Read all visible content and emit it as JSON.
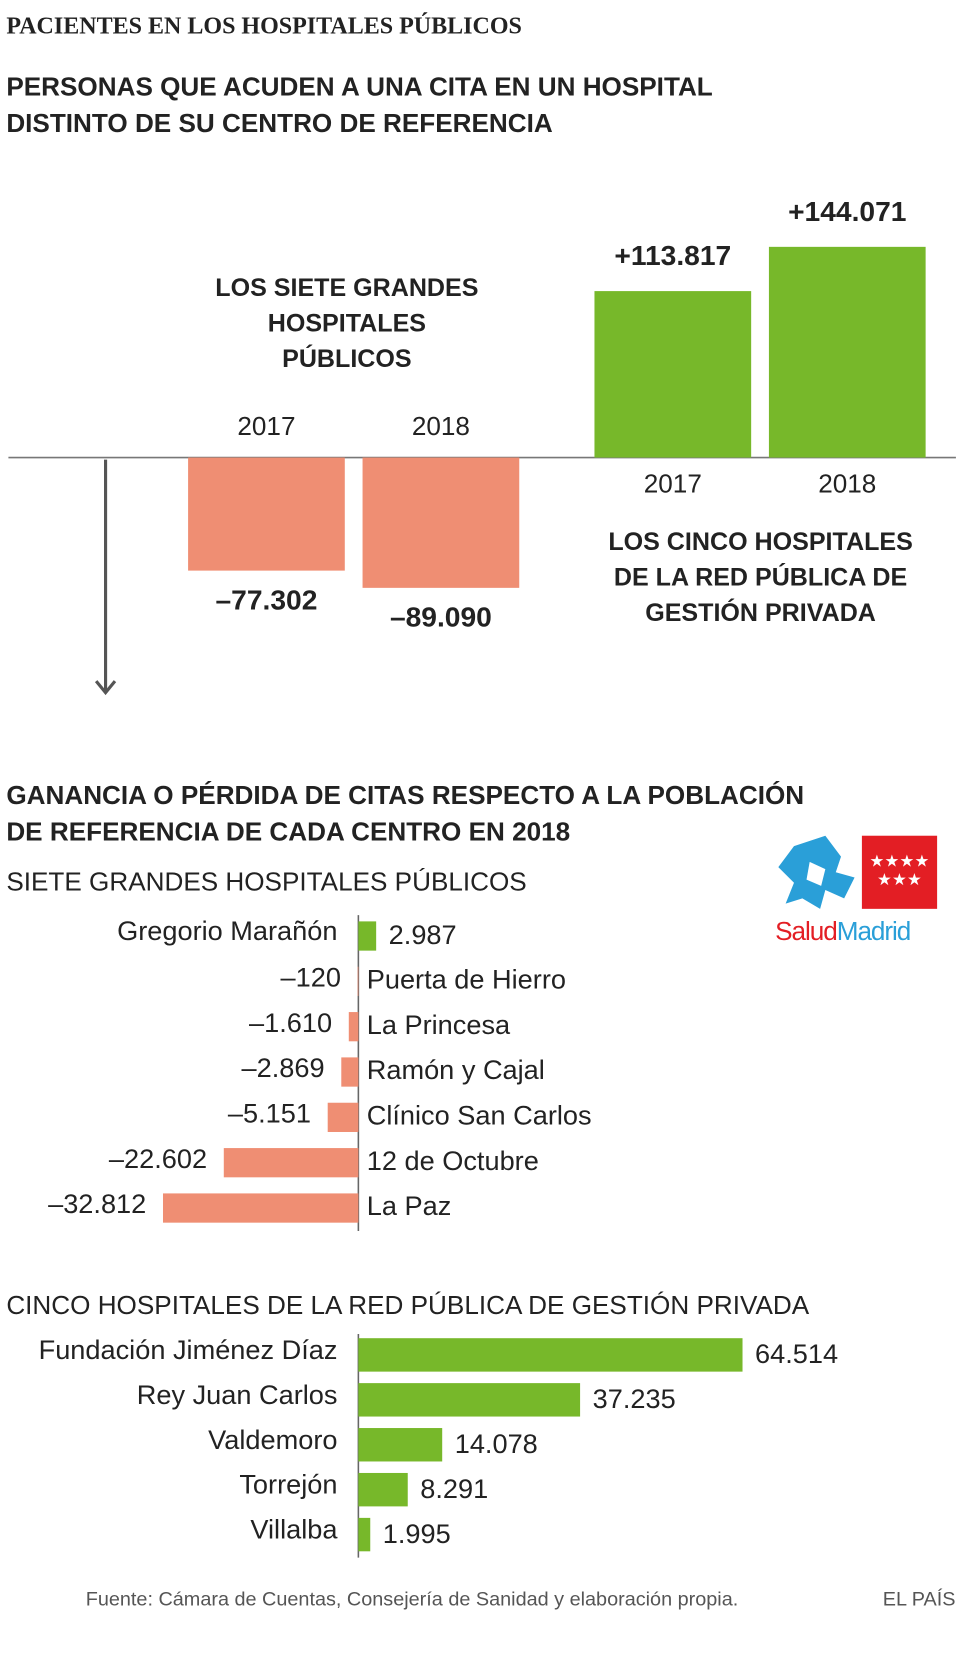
{
  "title": "PACIENTES EN LOS HOSPITALES PÚBLICOS",
  "chart_data": [
    {
      "type": "bar",
      "title": [
        "PERSONAS QUE ACUDEN A UNA CITA EN UN HOSPITAL",
        "DISTINTO DE SU CENTRO DE REFERENCIA"
      ],
      "categories": [
        "2017",
        "2018"
      ],
      "series": [
        {
          "name": [
            "LOS SIETE GRANDES",
            "HOSPITALES",
            "PÚBLICOS"
          ],
          "color": "#ef8e73",
          "values": [
            -77302,
            -89090
          ],
          "value_labels": [
            "–77.302",
            "–89.090"
          ]
        },
        {
          "name": [
            "LOS CINCO HOSPITALES",
            "DE LA RED PÚBLICA DE",
            "GESTIÓN PRIVADA"
          ],
          "color": "#77b82a",
          "values": [
            113817,
            144071
          ],
          "value_labels": [
            "+113.817",
            "+144.071"
          ]
        }
      ]
    },
    {
      "type": "barh",
      "title": [
        "GANANCIA O PÉRDIDA DE CITAS RESPECTO A LA POBLACIÓN",
        "DE REFERENCIA DE CADA CENTRO EN 2018"
      ],
      "subtitle": "SIETE GRANDES HOSPITALES PÚBLICOS",
      "categories": [
        "Gregorio Marañón",
        "Puerta de Hierro",
        "La Princesa",
        "Ramón y Cajal",
        "Clínico San Carlos",
        "12 de Octubre",
        "La Paz"
      ],
      "values": [
        2987,
        -120,
        -1610,
        -2869,
        -5151,
        -22602,
        -32812
      ],
      "value_labels": [
        "2.987",
        "–120",
        "–1.610",
        "–2.869",
        "–5.151",
        "–22.602",
        "–32.812"
      ],
      "colors": {
        "positive": "#77b82a",
        "negative": "#ef8e73"
      }
    },
    {
      "type": "barh",
      "subtitle": "CINCO HOSPITALES DE LA RED PÚBLICA DE GESTIÓN PRIVADA",
      "categories": [
        "Fundación Jiménez Díaz",
        "Rey Juan Carlos",
        "Valdemoro",
        "Torrejón",
        "Villalba"
      ],
      "values": [
        64514,
        37235,
        14078,
        8291,
        1995
      ],
      "value_labels": [
        "64.514",
        "37.235",
        "14.078",
        "8.291",
        "1.995"
      ],
      "color": "#77b82a"
    }
  ],
  "logo": [
    "Salud",
    "Madrid"
  ],
  "source": "Fuente: Cámara de Cuentas, Consejería de Sanidad y elaboración propia.",
  "credit": "EL PAÍS"
}
